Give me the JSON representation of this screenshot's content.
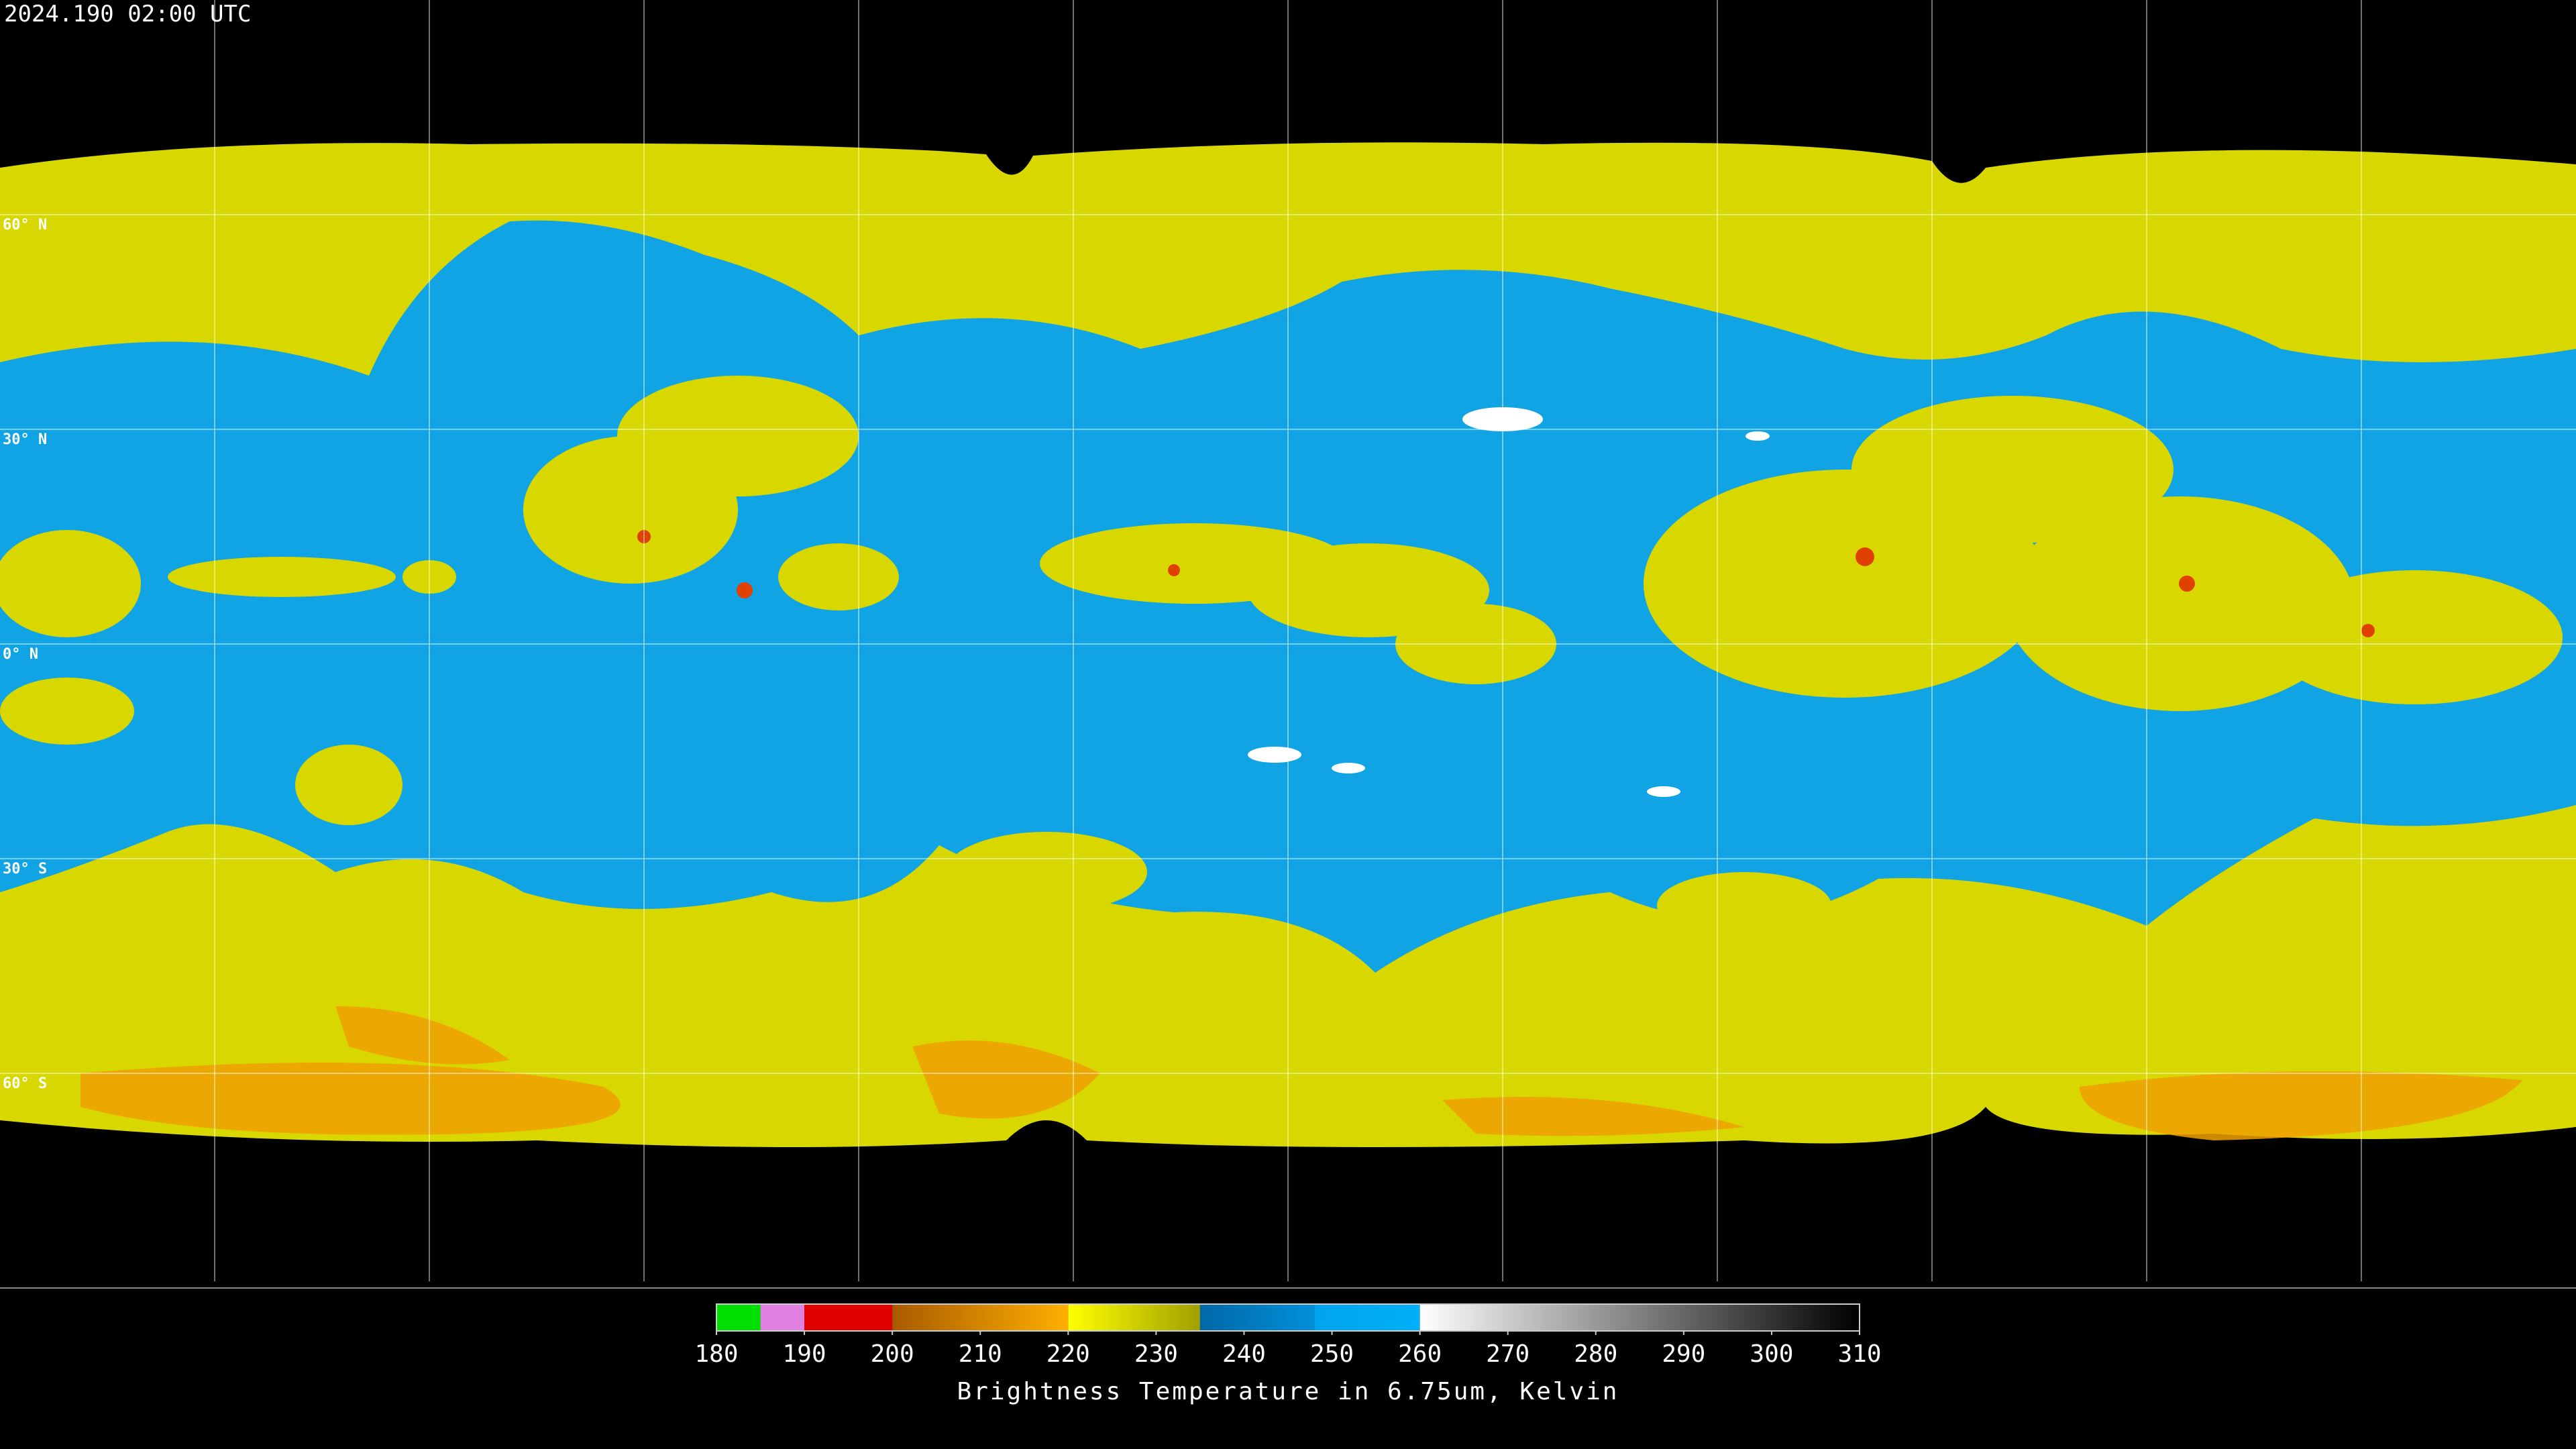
{
  "header": {
    "title": "2024.190 02:00 UTC"
  },
  "map": {
    "lat_labels": [
      "60° N",
      "30° N",
      "0° N",
      "30° S",
      "60° S"
    ]
  },
  "colorbar": {
    "range": [
      180,
      310
    ],
    "ticks": [
      180,
      190,
      200,
      210,
      220,
      230,
      240,
      250,
      260,
      270,
      280,
      290,
      300,
      310
    ],
    "label": "Brightness Temperature in 6.75um, Kelvin",
    "segments": [
      {
        "from": 180,
        "to": 185,
        "colors": [
          "#00e000",
          "#00e000"
        ]
      },
      {
        "from": 185,
        "to": 190,
        "colors": [
          "#e080e0",
          "#e080e0"
        ]
      },
      {
        "from": 190,
        "to": 200,
        "colors": [
          "#e00000",
          "#e00000"
        ]
      },
      {
        "from": 200,
        "to": 220,
        "colors": [
          "#a85a00",
          "#ffb000"
        ]
      },
      {
        "from": 220,
        "to": 235,
        "colors": [
          "#ffff00",
          "#a0a000"
        ]
      },
      {
        "from": 235,
        "to": 248,
        "colors": [
          "#0068a8",
          "#0090d8"
        ]
      },
      {
        "from": 248,
        "to": 260,
        "colors": [
          "#00a4ec",
          "#00b0f8"
        ]
      },
      {
        "from": 260,
        "to": 310,
        "colors": [
          "#ffffff",
          "#000000"
        ]
      }
    ]
  }
}
